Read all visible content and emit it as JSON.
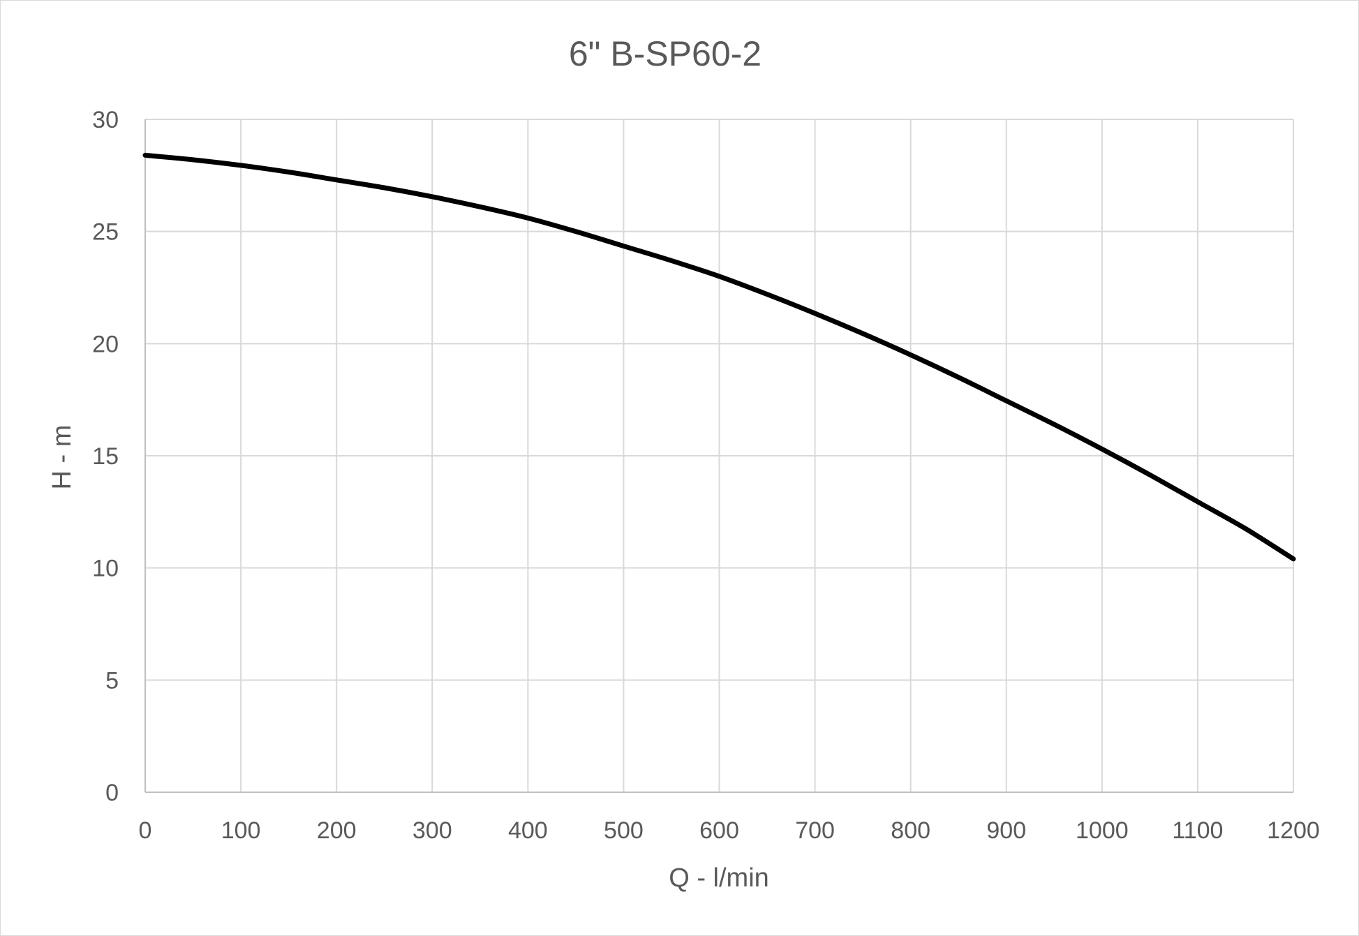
{
  "chart_data": {
    "type": "line",
    "title": "6\" B-SP60-2",
    "xlabel": "Q - l/min",
    "ylabel": "H - m",
    "xlim": [
      0,
      1200
    ],
    "ylim": [
      0,
      30
    ],
    "x_ticks": [
      0,
      100,
      200,
      300,
      400,
      500,
      600,
      700,
      800,
      900,
      1000,
      1100,
      1200
    ],
    "y_ticks": [
      0,
      5,
      10,
      15,
      20,
      25,
      30
    ],
    "grid": true,
    "legend": "none",
    "series": [
      {
        "color": "#000000",
        "x": [
          0,
          50,
          100,
          150,
          200,
          250,
          300,
          350,
          400,
          450,
          500,
          550,
          600,
          650,
          700,
          750,
          800,
          850,
          900,
          950,
          1000,
          1050,
          1100,
          1150,
          1200
        ],
        "y": [
          28.4,
          28.2,
          27.95,
          27.65,
          27.3,
          26.95,
          26.55,
          26.1,
          25.6,
          25.0,
          24.35,
          23.7,
          23.0,
          22.2,
          21.35,
          20.45,
          19.5,
          18.5,
          17.45,
          16.4,
          15.3,
          14.15,
          12.95,
          11.75,
          10.4
        ]
      }
    ]
  }
}
